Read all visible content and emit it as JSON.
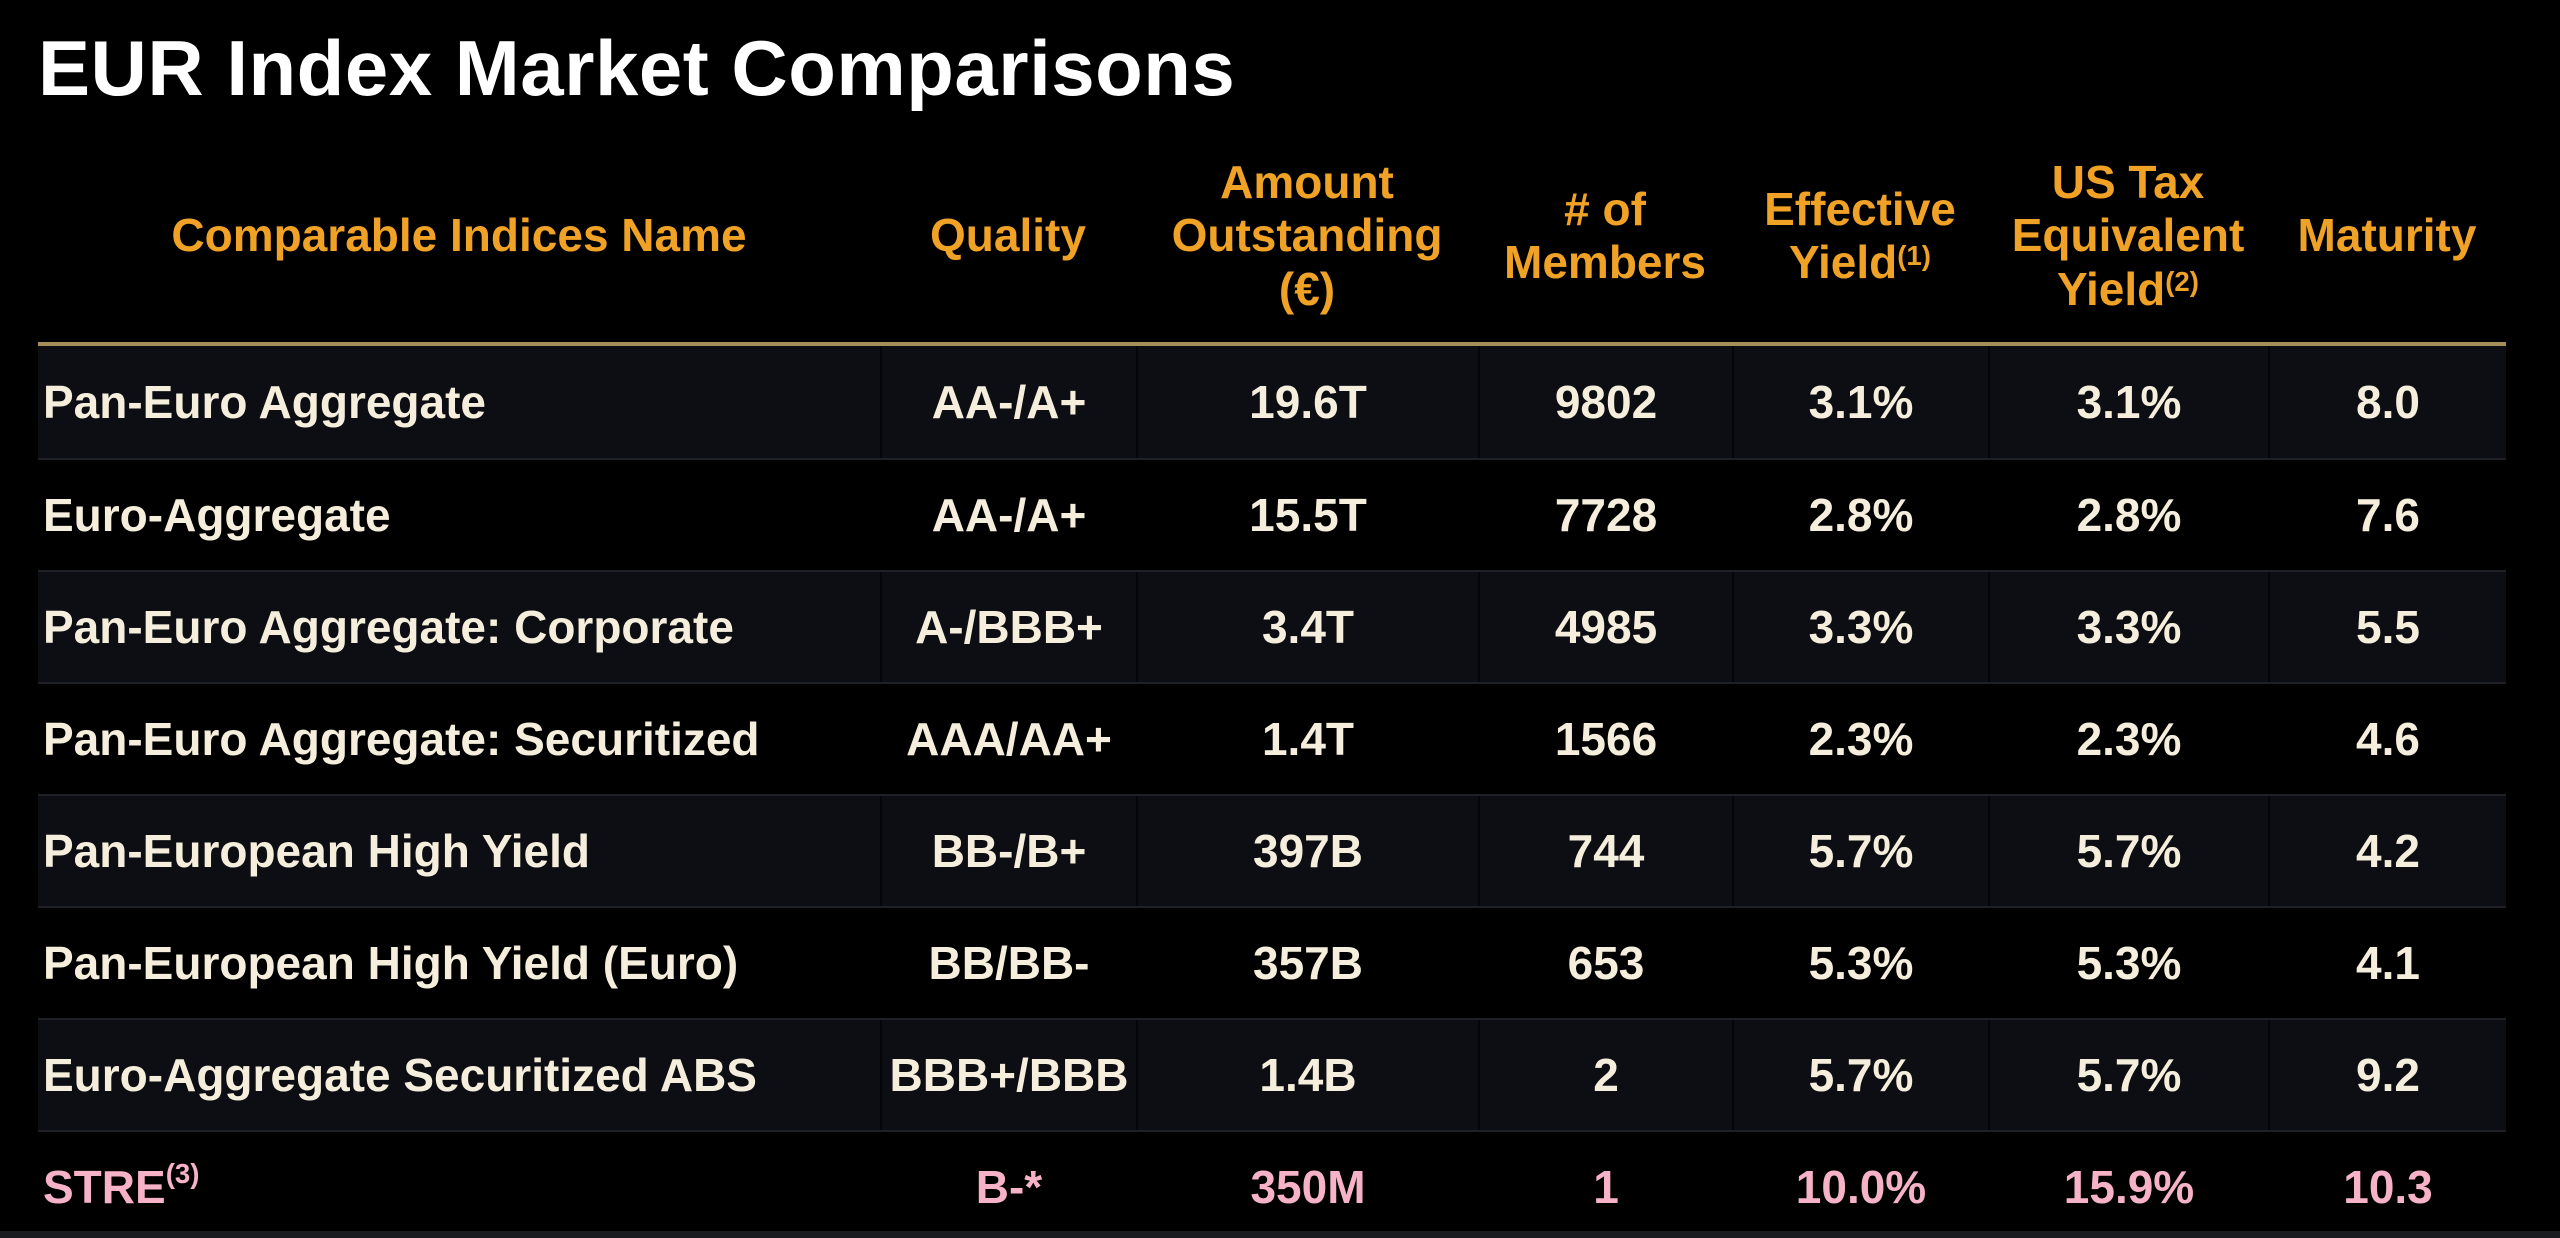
{
  "title": "EUR Index Market Comparisons",
  "colors": {
    "background": "#000000",
    "title_text": "#FFFFFF",
    "header_text": "#F0A227",
    "header_rule": "#A58F58",
    "body_text": "#F5EEDC",
    "highlight_row_text": "#F6B3C8",
    "row_stripe": "#0D0E13"
  },
  "table": {
    "headers": [
      {
        "id": "name",
        "label": "Comparable Indices Name",
        "sup": ""
      },
      {
        "id": "quality",
        "label": "Quality",
        "sup": ""
      },
      {
        "id": "amount",
        "label": "Amount Outstanding (€)",
        "sup": ""
      },
      {
        "id": "members",
        "label": "# of Members",
        "sup": ""
      },
      {
        "id": "effective_yield",
        "label": "Effective Yield",
        "sup": "(1)"
      },
      {
        "id": "us_tax_equivalent_yield",
        "label": "US Tax Equivalent Yield",
        "sup": "(2)"
      },
      {
        "id": "maturity",
        "label": "Maturity",
        "sup": ""
      }
    ],
    "rows": [
      {
        "name": "Pan-Euro Aggregate",
        "name_sup": "",
        "quality": "AA-/A+",
        "amount": "19.6T",
        "members": "9802",
        "effective_yield": "3.1%",
        "us_tax_equivalent_yield": "3.1%",
        "maturity": "8.0",
        "highlight": false
      },
      {
        "name": "Euro-Aggregate",
        "name_sup": "",
        "quality": "AA-/A+",
        "amount": "15.5T",
        "members": "7728",
        "effective_yield": "2.8%",
        "us_tax_equivalent_yield": "2.8%",
        "maturity": "7.6",
        "highlight": false
      },
      {
        "name": "Pan-Euro Aggregate: Corporate",
        "name_sup": "",
        "quality": "A-/BBB+",
        "amount": "3.4T",
        "members": "4985",
        "effective_yield": "3.3%",
        "us_tax_equivalent_yield": "3.3%",
        "maturity": "5.5",
        "highlight": false
      },
      {
        "name": "Pan-Euro Aggregate: Securitized",
        "name_sup": "",
        "quality": "AAA/AA+",
        "amount": "1.4T",
        "members": "1566",
        "effective_yield": "2.3%",
        "us_tax_equivalent_yield": "2.3%",
        "maturity": "4.6",
        "highlight": false
      },
      {
        "name": "Pan-European High Yield",
        "name_sup": "",
        "quality": "BB-/B+",
        "amount": "397B",
        "members": "744",
        "effective_yield": "5.7%",
        "us_tax_equivalent_yield": "5.7%",
        "maturity": "4.2",
        "highlight": false
      },
      {
        "name": "Pan-European High Yield (Euro)",
        "name_sup": "",
        "quality": "BB/BB-",
        "amount": "357B",
        "members": "653",
        "effective_yield": "5.3%",
        "us_tax_equivalent_yield": "5.3%",
        "maturity": "4.1",
        "highlight": false
      },
      {
        "name": "Euro-Aggregate Securitized ABS",
        "name_sup": "",
        "quality": "BBB+/BBB",
        "amount": "1.4B",
        "members": "2",
        "effective_yield": "5.7%",
        "us_tax_equivalent_yield": "5.7%",
        "maturity": "9.2",
        "highlight": false
      },
      {
        "name": "STRE",
        "name_sup": "(3)",
        "quality": "B-*",
        "amount": "350M",
        "members": "1",
        "effective_yield": "10.0%",
        "us_tax_equivalent_yield": "15.9%",
        "maturity": "10.3",
        "highlight": true
      }
    ]
  }
}
